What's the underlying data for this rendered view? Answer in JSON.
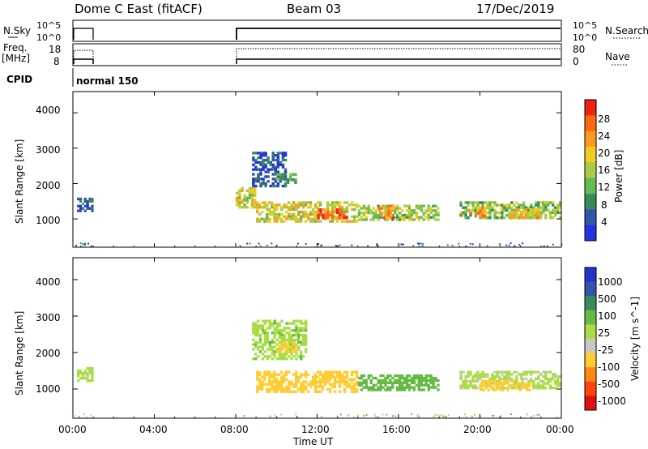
{
  "header": {
    "station": "Dome C East (fitACF)",
    "beam": "Beam 03",
    "date": "17/Dec/2019"
  },
  "param_panels": {
    "nsky": {
      "label": "N.Sky",
      "ticks": [
        "10^5",
        "10^0"
      ]
    },
    "freq": {
      "label_top": "Freq.",
      "label_bottom": "[MHz]",
      "ticks": [
        "18",
        "8"
      ]
    },
    "nsearch": {
      "label": "N.Search",
      "ticks": [
        "10^5",
        "10^0"
      ]
    },
    "nave": {
      "label": "Nave",
      "ticks": [
        "80",
        "0"
      ]
    },
    "cpid": {
      "label": "CPID",
      "value": "normal 150"
    }
  },
  "colors": {
    "power": [
      "#2233dd",
      "#3355aa",
      "#3a8a5a",
      "#66bb55",
      "#aacc44",
      "#eecc22",
      "#ff9922",
      "#ff6611",
      "#ee2211"
    ],
    "velocity": [
      "#2233cc",
      "#3355aa",
      "#3a8a5a",
      "#66bb44",
      "#aadd44",
      "#c8c8c0",
      "#ffcc33",
      "#ff8811",
      "#ff4411",
      "#dd1111"
    ]
  },
  "chart_data": [
    {
      "type": "heatmap",
      "panel": "power",
      "ylabel": "Slant Range [km]",
      "ylim": [
        200,
        4600
      ],
      "yticks": [
        "4000",
        "3000",
        "2000",
        "1000"
      ],
      "xlim": [
        "00:00",
        "24:00"
      ],
      "colorbar": {
        "label": "Power [dB]",
        "ticks": [
          "28",
          "24",
          "20",
          "16",
          "12",
          "8",
          "4"
        ],
        "range": [
          0,
          32
        ]
      },
      "regions": [
        {
          "t0": 0.2,
          "t1": 1.0,
          "r0": 1200,
          "r1": 1600,
          "v": 6
        },
        {
          "t0": 8.0,
          "t1": 9.0,
          "r0": 1300,
          "r1": 1900,
          "v": 18
        },
        {
          "t0": 8.8,
          "t1": 10.5,
          "r0": 1900,
          "r1": 2900,
          "v": 5
        },
        {
          "t0": 10.0,
          "t1": 11.0,
          "r0": 2000,
          "r1": 2300,
          "v": 12
        },
        {
          "t0": 9.0,
          "t1": 14.0,
          "r0": 900,
          "r1": 1500,
          "v": 18
        },
        {
          "t0": 12.0,
          "t1": 13.5,
          "r0": 1000,
          "r1": 1300,
          "v": 28
        },
        {
          "t0": 14.0,
          "t1": 18.0,
          "r0": 950,
          "r1": 1400,
          "v": 15
        },
        {
          "t0": 15.0,
          "t1": 15.8,
          "r0": 1000,
          "r1": 1400,
          "v": 24
        },
        {
          "t0": 19.0,
          "t1": 24.0,
          "r0": 1000,
          "r1": 1500,
          "v": 14
        },
        {
          "t0": 19.5,
          "t1": 20.3,
          "r0": 1050,
          "r1": 1350,
          "v": 22
        },
        {
          "t0": 21.5,
          "t1": 23.0,
          "r0": 1000,
          "r1": 1300,
          "v": 20
        }
      ]
    },
    {
      "type": "heatmap",
      "panel": "velocity",
      "ylabel": "Slant Range [km]",
      "ylim": [
        200,
        4600
      ],
      "yticks": [
        "4000",
        "3000",
        "2000",
        "1000"
      ],
      "xlim": [
        "00:00",
        "24:00"
      ],
      "xticks": [
        "00:00",
        "04:00",
        "08:00",
        "12:00",
        "16:00",
        "20:00",
        "00:00"
      ],
      "xlabel": "Time UT",
      "colorbar": {
        "label": "Velocity [m s^-1]",
        "ticks": [
          "1000",
          "500",
          "100",
          "25",
          "-25",
          "-100",
          "-500",
          "-1000"
        ]
      },
      "regions": [
        {
          "t0": 0.2,
          "t1": 1.0,
          "r0": 1200,
          "r1": 1600,
          "v": -10
        },
        {
          "t0": 8.8,
          "t1": 11.5,
          "r0": 1800,
          "r1": 2900,
          "v": 10
        },
        {
          "t0": 10.0,
          "t1": 11.0,
          "r0": 2000,
          "r1": 2300,
          "v": -300
        },
        {
          "t0": 9.0,
          "t1": 14.0,
          "r0": 900,
          "r1": 1500,
          "v": -200
        },
        {
          "t0": 14.0,
          "t1": 18.0,
          "r0": 950,
          "r1": 1400,
          "v": 50
        },
        {
          "t0": 19.0,
          "t1": 24.0,
          "r0": 1000,
          "r1": 1500,
          "v": -10
        },
        {
          "t0": 20.0,
          "t1": 22.5,
          "r0": 950,
          "r1": 1250,
          "v": -300
        }
      ]
    }
  ]
}
